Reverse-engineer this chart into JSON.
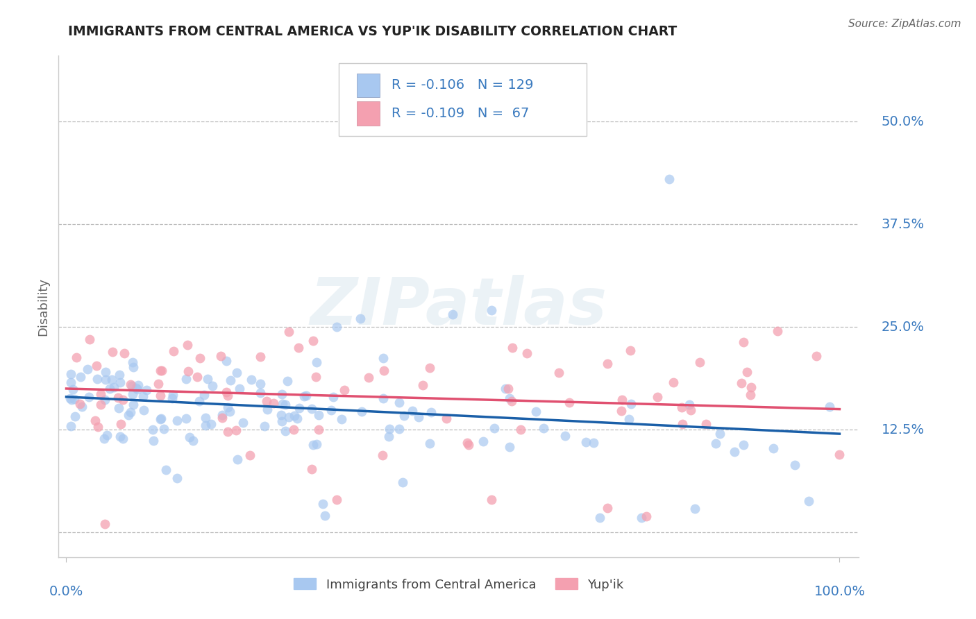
{
  "title": "IMMIGRANTS FROM CENTRAL AMERICA VS YUP'IK DISABILITY CORRELATION CHART",
  "source": "Source: ZipAtlas.com",
  "ylabel": "Disability",
  "ytick_vals": [
    0.0,
    0.125,
    0.25,
    0.375,
    0.5
  ],
  "ytick_labels": [
    "",
    "12.5%",
    "25.0%",
    "37.5%",
    "50.0%"
  ],
  "xlim": [
    0.0,
    1.0
  ],
  "ylim": [
    -0.03,
    0.58
  ],
  "legend_label_blue": "Immigrants from Central America",
  "legend_label_pink": "Yup'ik",
  "dot_color_blue": "#a8c8f0",
  "dot_color_pink": "#f4a0b0",
  "line_color_blue": "#1a5fa8",
  "line_color_pink": "#e05070",
  "watermark_text": "ZIPatlas",
  "title_color": "#222222",
  "axis_label_color": "#3a7abf",
  "legend_r_blue": "R = -0.106",
  "legend_n_blue": "N = 129",
  "legend_r_pink": "R = -0.109",
  "legend_n_pink": "N =  67",
  "blue_intercept": 0.165,
  "blue_slope": -0.045,
  "pink_intercept": 0.175,
  "pink_slope": -0.025
}
